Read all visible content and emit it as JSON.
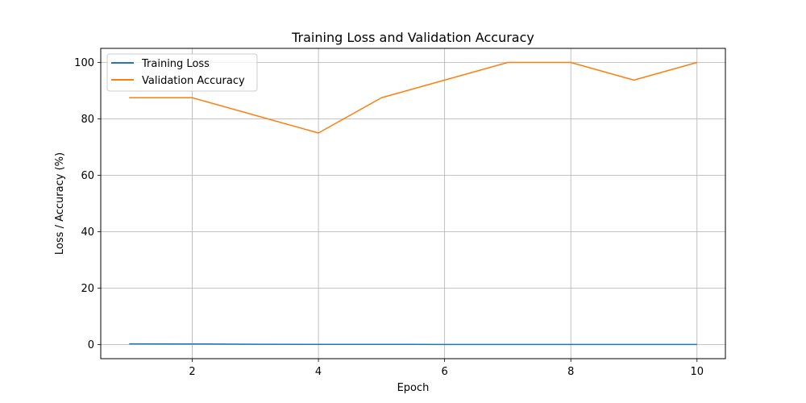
{
  "chart_data": {
    "type": "line",
    "title": "Training Loss and Validation Accuracy",
    "xlabel": "Epoch",
    "ylabel": "Loss / Accuracy (%)",
    "x": [
      1,
      2,
      3,
      4,
      5,
      6,
      7,
      8,
      9,
      10
    ],
    "xlim": [
      0.55,
      10.45
    ],
    "ylim": [
      -5,
      105
    ],
    "xticks": [
      2,
      4,
      6,
      8,
      10
    ],
    "yticks": [
      0,
      20,
      40,
      60,
      80,
      100
    ],
    "grid": true,
    "legend_position": "upper-left",
    "series": [
      {
        "name": "Training Loss",
        "color": "#1f77b4",
        "values": [
          0.25,
          0.22,
          0.12,
          0.08,
          0.07,
          0.05,
          0.04,
          0.03,
          0.02,
          0.02
        ]
      },
      {
        "name": "Validation Accuracy",
        "color": "#ff7f0e",
        "values": [
          87.5,
          87.5,
          81.25,
          75.0,
          87.5,
          93.75,
          100.0,
          100.0,
          93.75,
          100.0
        ]
      }
    ]
  }
}
